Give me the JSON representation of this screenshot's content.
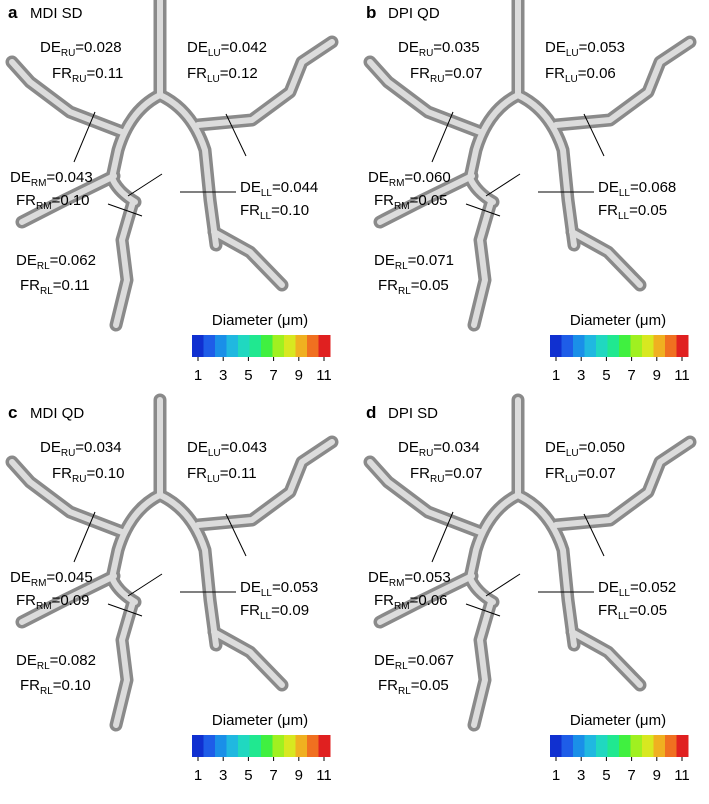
{
  "panels": [
    {
      "letter": "a",
      "title": "MDI SD",
      "labels": [
        {
          "metric": "DE",
          "region": "RU",
          "value": "=0.028"
        },
        {
          "metric": "FR",
          "region": "RU",
          "value": "=0.11"
        },
        {
          "metric": "DE",
          "region": "LU",
          "value": "=0.042"
        },
        {
          "metric": "FR",
          "region": "LU",
          "value": "=0.12"
        },
        {
          "metric": "DE",
          "region": "RM",
          "value": "=0.043"
        },
        {
          "metric": "FR",
          "region": "RM",
          "value": "=0.10"
        },
        {
          "metric": "DE",
          "region": "LL",
          "value": "=0.044"
        },
        {
          "metric": "FR",
          "region": "LL",
          "value": "=0.10"
        },
        {
          "metric": "DE",
          "region": "RL",
          "value": "=0.062"
        },
        {
          "metric": "FR",
          "region": "RL",
          "value": "=0.11"
        }
      ]
    },
    {
      "letter": "b",
      "title": "DPI QD",
      "labels": [
        {
          "metric": "DE",
          "region": "RU",
          "value": "=0.035"
        },
        {
          "metric": "FR",
          "region": "RU",
          "value": "=0.07"
        },
        {
          "metric": "DE",
          "region": "LU",
          "value": "=0.053"
        },
        {
          "metric": "FR",
          "region": "LU",
          "value": "=0.06"
        },
        {
          "metric": "DE",
          "region": "RM",
          "value": "=0.060"
        },
        {
          "metric": "FR",
          "region": "RM",
          "value": "=0.05"
        },
        {
          "metric": "DE",
          "region": "LL",
          "value": "=0.068"
        },
        {
          "metric": "FR",
          "region": "LL",
          "value": "=0.05"
        },
        {
          "metric": "DE",
          "region": "RL",
          "value": "=0.071"
        },
        {
          "metric": "FR",
          "region": "RL",
          "value": "=0.05"
        }
      ]
    },
    {
      "letter": "c",
      "title": "MDI QD",
      "labels": [
        {
          "metric": "DE",
          "region": "RU",
          "value": "=0.034"
        },
        {
          "metric": "FR",
          "region": "RU",
          "value": "=0.10"
        },
        {
          "metric": "DE",
          "region": "LU",
          "value": "=0.043"
        },
        {
          "metric": "FR",
          "region": "LU",
          "value": "=0.11"
        },
        {
          "metric": "DE",
          "region": "RM",
          "value": "=0.045"
        },
        {
          "metric": "FR",
          "region": "RM",
          "value": "=0.09"
        },
        {
          "metric": "DE",
          "region": "LL",
          "value": "=0.053"
        },
        {
          "metric": "FR",
          "region": "LL",
          "value": "=0.09"
        },
        {
          "metric": "DE",
          "region": "RL",
          "value": "=0.082"
        },
        {
          "metric": "FR",
          "region": "RL",
          "value": "=0.10"
        }
      ]
    },
    {
      "letter": "d",
      "title": "DPI SD",
      "labels": [
        {
          "metric": "DE",
          "region": "RU",
          "value": "=0.034"
        },
        {
          "metric": "FR",
          "region": "RU",
          "value": "=0.07"
        },
        {
          "metric": "DE",
          "region": "LU",
          "value": "=0.050"
        },
        {
          "metric": "FR",
          "region": "LU",
          "value": "=0.07"
        },
        {
          "metric": "DE",
          "region": "RM",
          "value": "=0.053"
        },
        {
          "metric": "FR",
          "region": "RM",
          "value": "=0.06"
        },
        {
          "metric": "DE",
          "region": "LL",
          "value": "=0.052"
        },
        {
          "metric": "FR",
          "region": "LL",
          "value": "=0.05"
        },
        {
          "metric": "DE",
          "region": "RL",
          "value": "=0.067"
        },
        {
          "metric": "FR",
          "region": "RL",
          "value": "=0.05"
        }
      ]
    }
  ],
  "legend": {
    "title": "Diameter (μm)",
    "ticks": [
      1,
      3,
      5,
      7,
      9,
      11
    ],
    "colors": [
      "#1030d0",
      "#1e5de8",
      "#1a8fe8",
      "#20b8e0",
      "#20d8c0",
      "#20e890",
      "#40f040",
      "#a0f020",
      "#d8e820",
      "#f0b020",
      "#f07020",
      "#e02020"
    ]
  }
}
